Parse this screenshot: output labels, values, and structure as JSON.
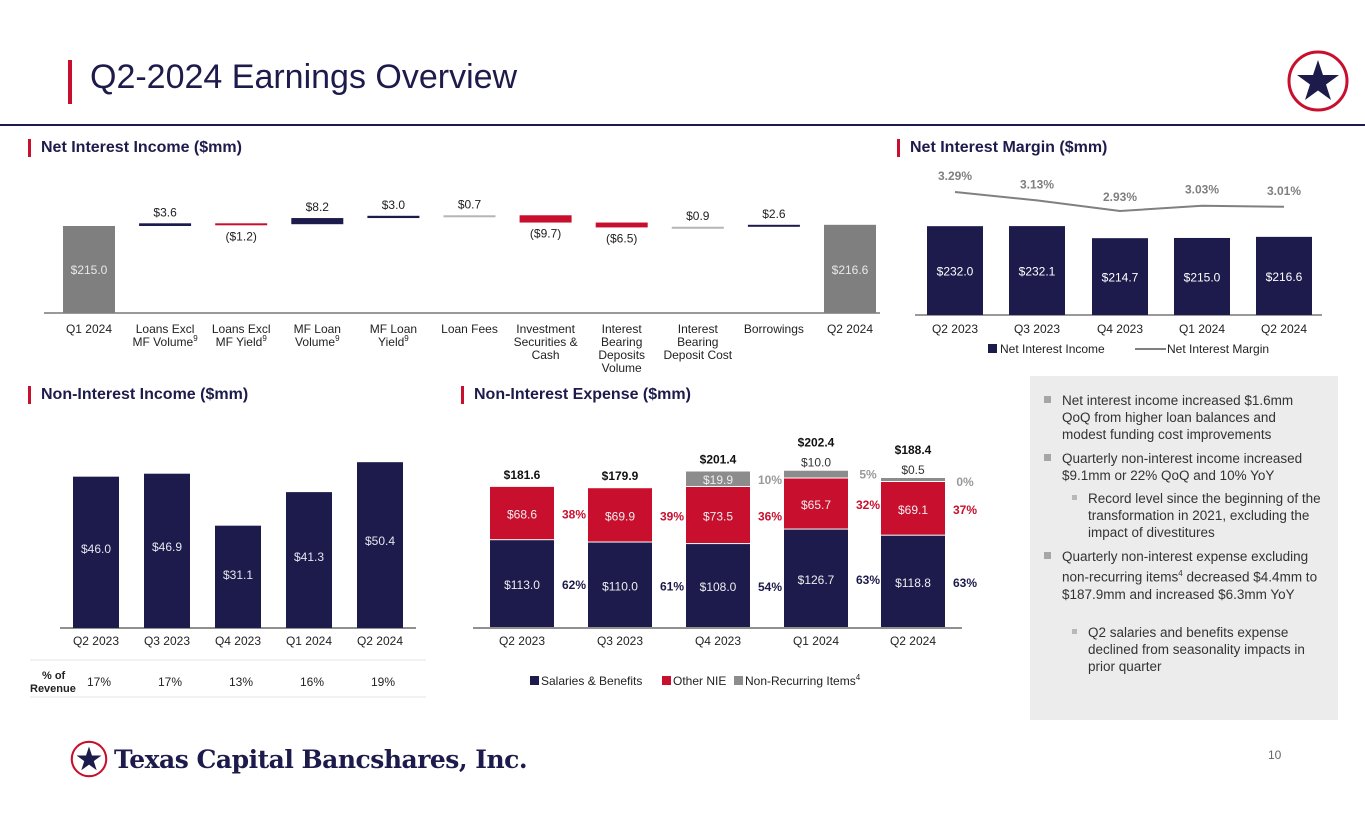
{
  "header": {
    "title": "Q2-2024 Earnings Overview"
  },
  "sections": {
    "nii": "Net Interest Income ($mm)",
    "nim": "Net Interest Margin ($mm)",
    "nonii": "Non-Interest Income ($mm)",
    "nie": "Non-Interest Expense ($mm)"
  },
  "chart_data": [
    {
      "id": "nii_waterfall",
      "type": "bar",
      "subtype": "waterfall",
      "title": "Net Interest Income ($mm)",
      "start": {
        "label": "Q1 2024",
        "value": 215.0,
        "text": "$215.0"
      },
      "steps": [
        {
          "lines": [
            "Loans Excl",
            "MF Volume"
          ],
          "sup": "9",
          "value": 3.6,
          "text": "$3.6",
          "color": "#1c1b4b"
        },
        {
          "lines": [
            "Loans Excl",
            "MF Yield"
          ],
          "sup": "9",
          "value": -1.2,
          "text": "($1.2)",
          "color": "#c8102e"
        },
        {
          "lines": [
            "MF Loan",
            "Volume"
          ],
          "sup": "9",
          "value": 8.2,
          "text": "$8.2",
          "color": "#1c1b4b"
        },
        {
          "lines": [
            "MF Loan",
            "Yield"
          ],
          "sup": "9",
          "value": 3.0,
          "text": "$3.0",
          "color": "#1c1b4b"
        },
        {
          "lines": [
            "Loan Fees"
          ],
          "sup": "",
          "value": 0.7,
          "text": "$0.7",
          "color": "#b5b5b5"
        },
        {
          "lines": [
            "Investment",
            "Securities &",
            "Cash"
          ],
          "sup": "",
          "value": -9.7,
          "text": "($9.7)",
          "color": "#c8102e"
        },
        {
          "lines": [
            "Interest",
            "Bearing",
            "Deposits",
            "Volume"
          ],
          "sup": "",
          "value": -6.5,
          "text": "($6.5)",
          "color": "#c8102e"
        },
        {
          "lines": [
            "Interest",
            "Bearing",
            "Deposit Cost"
          ],
          "sup": "",
          "value": 0.9,
          "text": "$0.9",
          "color": "#b5b5b5"
        },
        {
          "lines": [
            "Borrowings"
          ],
          "sup": "",
          "value": 2.6,
          "text": "$2.6",
          "color": "#1c1b4b"
        }
      ],
      "end": {
        "label": "Q2 2024",
        "value": 216.6,
        "text": "$216.6"
      },
      "total_color": "#7f7f7f"
    },
    {
      "id": "nim",
      "type": "bar+line",
      "title": "Net Interest Margin ($mm)",
      "categories": [
        "Q2 2023",
        "Q3 2023",
        "Q4 2023",
        "Q1 2024",
        "Q2 2024"
      ],
      "series": [
        {
          "name": "Net Interest Income",
          "type": "bar",
          "values": [
            232.0,
            232.1,
            214.7,
            215.0,
            216.6
          ],
          "labels": [
            "$232.0",
            "$232.1",
            "$214.7",
            "$215.0",
            "$216.6"
          ],
          "color": "#1c1b4b"
        },
        {
          "name": "Net Interest Margin",
          "type": "line",
          "values": [
            3.29,
            3.13,
            2.93,
            3.03,
            3.01
          ],
          "labels": [
            "3.29%",
            "3.13%",
            "2.93%",
            "3.03%",
            "3.01%"
          ],
          "color": "#808080"
        }
      ],
      "legend": "bottom"
    },
    {
      "id": "non_interest_income",
      "type": "bar",
      "title": "Non-Interest Income ($mm)",
      "categories": [
        "Q2 2023",
        "Q3 2023",
        "Q4 2023",
        "Q1 2024",
        "Q2 2024"
      ],
      "values": [
        46.0,
        46.9,
        31.1,
        41.3,
        50.4
      ],
      "labels": [
        "$46.0",
        "$46.9",
        "$31.1",
        "$41.3",
        "$50.4"
      ],
      "color": "#1c1b4b",
      "row_label": [
        "% of",
        "Revenue"
      ],
      "pct_of_revenue": [
        "17%",
        "17%",
        "13%",
        "16%",
        "19%"
      ]
    },
    {
      "id": "non_interest_expense",
      "type": "bar",
      "subtype": "stacked",
      "title": "Non-Interest Expense ($mm)",
      "categories": [
        "Q2 2023",
        "Q3 2023",
        "Q4 2023",
        "Q1 2024",
        "Q2 2024"
      ],
      "totals": [
        "$181.6",
        "$179.9",
        "$201.4",
        "$202.4",
        "$188.4"
      ],
      "series": [
        {
          "name": "Salaries & Benefits",
          "color": "#1c1b4b",
          "values": [
            113.0,
            110.0,
            108.0,
            126.7,
            118.8
          ],
          "labels": [
            "$113.0",
            "$110.0",
            "$108.0",
            "$126.7",
            "$118.8"
          ],
          "pcts": [
            "62%",
            "61%",
            "54%",
            "63%",
            "63%"
          ]
        },
        {
          "name": "Other NIE",
          "color": "#c8102e",
          "values": [
            68.6,
            69.9,
            73.5,
            65.7,
            69.1
          ],
          "labels": [
            "$68.6",
            "$69.9",
            "$73.5",
            "$65.7",
            "$69.1"
          ],
          "pcts": [
            "38%",
            "39%",
            "36%",
            "32%",
            "37%"
          ]
        },
        {
          "name": "Non-Recurring Items",
          "sup": "4",
          "color": "#8c8c8c",
          "values": [
            0,
            0,
            19.9,
            10.0,
            0.5
          ],
          "labels": [
            "",
            "",
            "$19.9",
            "$10.0",
            "$0.5"
          ],
          "pcts": [
            "",
            "",
            "10%",
            "5%",
            "0%"
          ]
        }
      ],
      "legend": "bottom"
    }
  ],
  "panel": {
    "bullets": [
      {
        "level": 1,
        "text": "Net interest income increased $1.6mm QoQ from higher loan balances and modest funding cost improvements"
      },
      {
        "level": 1,
        "text": "Quarterly non-interest income increased $9.1mm or 22% QoQ and 10% YoY"
      },
      {
        "level": 2,
        "text": "Record level since the beginning of the transformation in 2021, excluding the impact of divestitures"
      },
      {
        "level": 1,
        "text_a": "Quarterly non-interest expense excluding non-recurring items",
        "sup": "4",
        "text_b": " decreased $4.4mm to $187.9mm and increased $6.3mm YoY"
      },
      {
        "level": 2,
        "text": "Q2 salaries and benefits expense declined from seasonality impacts in prior quarter"
      }
    ]
  },
  "footer": {
    "logo_text": "Texas Capital Bancshares, Inc.",
    "page_number": "10"
  }
}
